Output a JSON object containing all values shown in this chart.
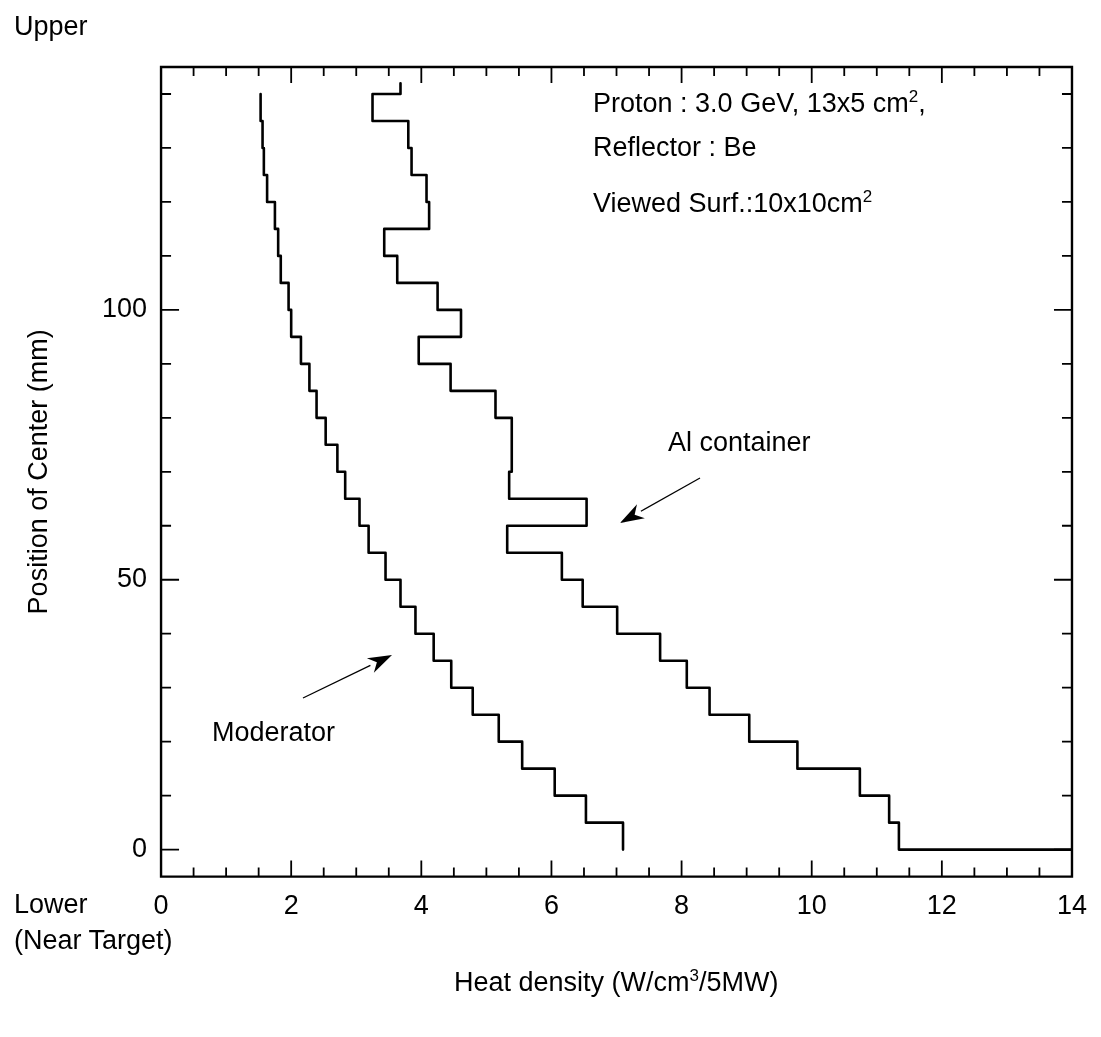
{
  "chart_data": {
    "type": "line",
    "xlabel": "Heat density (W/cm$^{3}$/5MW)",
    "ylabel": "Position of Center (mm)",
    "xlim": [
      0,
      14
    ],
    "xticks": [
      0,
      {
        "value": 0.5,
        "label": null
      },
      2,
      {
        "value": 1,
        "label": null
      },
      {
        "value": 1.5,
        "label": null
      },
      {
        "value": 2.5,
        "label": null
      },
      {
        "value": 3,
        "label": null
      },
      {
        "value": 3.5,
        "label": null
      },
      4,
      {
        "value": 4.5,
        "label": null
      },
      {
        "value": 5,
        "label": null
      },
      {
        "value": 5.5,
        "label": null
      },
      6,
      {
        "value": 6.5,
        "label": null
      },
      {
        "value": 7,
        "label": null
      },
      {
        "value": 7.5,
        "label": null
      },
      8,
      {
        "value": 8.5,
        "label": null
      },
      {
        "value": 9,
        "label": null
      },
      {
        "value": 9.5,
        "label": null
      },
      10,
      {
        "value": 10.5,
        "label": null
      },
      {
        "value": 11,
        "label": null
      },
      {
        "value": 11.5,
        "label": null
      },
      12,
      {
        "value": 12.5,
        "label": null
      },
      {
        "value": 13,
        "label": null
      },
      {
        "value": 13.5,
        "label": null
      },
      14
    ],
    "ylim": [
      -5,
      145
    ],
    "yticks": [
      0,
      {
        "value": 10,
        "label": null
      },
      {
        "value": 20,
        "label": null
      },
      {
        "value": 30,
        "label": null
      },
      {
        "value": 40,
        "label": null
      },
      50,
      {
        "value": 60,
        "label": null
      },
      {
        "value": 70,
        "label": null
      },
      {
        "value": 80,
        "label": null
      },
      {
        "value": 90,
        "label": null
      },
      100,
      {
        "value": 110,
        "label": null
      },
      {
        "value": 120,
        "label": null
      },
      {
        "value": 130,
        "label": null
      },
      {
        "value": 140,
        "label": null
      }
    ],
    "series": [
      {
        "color": "#000000",
        "x": [
          1.53,
          1.53,
          1.56,
          1.56,
          1.58,
          1.58,
          1.63,
          1.63,
          1.75,
          1.75,
          1.8,
          1.8,
          1.84,
          1.84,
          1.96,
          1.96,
          2.0,
          2.0,
          2.15,
          2.15,
          2.28,
          2.28,
          2.39,
          2.39,
          2.53,
          2.53,
          2.71,
          2.71,
          2.83,
          2.83,
          3.05,
          3.05,
          3.19,
          3.19,
          3.45,
          3.45,
          3.68,
          3.68,
          3.91,
          3.91,
          4.19,
          4.19,
          4.46,
          4.46,
          4.79,
          4.79,
          5.19,
          5.19,
          5.55,
          5.55,
          6.05,
          6.05,
          6.53,
          6.53,
          7.1,
          7.1
        ],
        "values": [
          140,
          135,
          135,
          130,
          130,
          125,
          125,
          120,
          120,
          115,
          115,
          110,
          110,
          105,
          105,
          100,
          100,
          95,
          95,
          90,
          90,
          85,
          85,
          80,
          80,
          75,
          75,
          70,
          70,
          65,
          65,
          60,
          60,
          55,
          55,
          50,
          50,
          45,
          45,
          40,
          40,
          35,
          35,
          30,
          30,
          25,
          25,
          20,
          20,
          15,
          15,
          10,
          10,
          5,
          5,
          0
        ]
      },
      {
        "color": "#000000",
        "x": [
          3.68,
          3.68,
          3.25,
          3.25,
          3.8,
          3.8,
          3.85,
          3.85,
          4.08,
          4.08,
          4.12,
          4.12,
          3.43,
          3.43,
          3.63,
          3.63,
          4.25,
          4.25,
          4.61,
          4.61,
          3.96,
          3.96,
          4.45,
          4.45,
          5.14,
          5.14,
          5.39,
          5.39,
          5.35,
          5.35,
          6.54,
          6.54,
          5.32,
          5.32,
          6.16,
          6.16,
          6.48,
          6.48,
          7.01,
          7.01,
          7.67,
          7.67,
          8.08,
          8.08,
          8.43,
          8.43,
          9.04,
          9.04,
          9.78,
          9.78,
          10.74,
          10.74,
          11.19,
          11.19,
          11.34,
          11.34,
          14
        ],
        "values": [
          142,
          140,
          140,
          135,
          135,
          130,
          130,
          125,
          125,
          120,
          120,
          115,
          115,
          110,
          110,
          105,
          105,
          100,
          100,
          95,
          95,
          90,
          90,
          85,
          85,
          80,
          80,
          70,
          70,
          65,
          65,
          60,
          60,
          55,
          55,
          50,
          50,
          45,
          45,
          40,
          40,
          35,
          35,
          30,
          30,
          25,
          25,
          20,
          20,
          15,
          15,
          10,
          10,
          5,
          5,
          0,
          0
        ]
      }
    ],
    "annotations": [
      "Proton : 3.0 GeV, 13x5 cm$^{2}$,",
      "Reflector : Be",
      "Viewed Surf.:10x10cm$^{2}$",
      "Upper",
      "Lower",
      "(Near Target)",
      "Al container",
      "Moderator"
    ]
  }
}
